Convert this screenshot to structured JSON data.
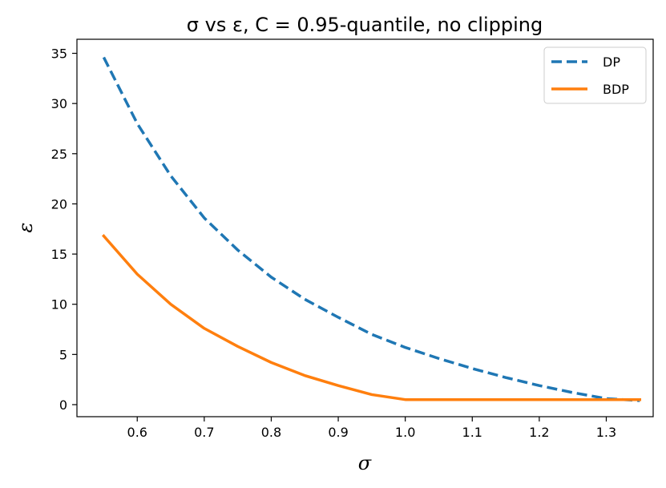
{
  "chart_data": {
    "type": "line",
    "title": "σ vs ε, C = 0.95-quantile, no clipping",
    "xlabel": "σ",
    "ylabel": "ε",
    "xlim": [
      0.51,
      1.37
    ],
    "ylim": [
      -1.2,
      36.4
    ],
    "xticks": [
      0.6,
      0.7,
      0.8,
      0.9,
      1.0,
      1.1,
      1.2,
      1.3
    ],
    "xtick_labels": [
      "0.6",
      "0.7",
      "0.8",
      "0.9",
      "1.0",
      "1.1",
      "1.2",
      "1.3"
    ],
    "yticks": [
      0,
      5,
      10,
      15,
      20,
      25,
      30,
      35
    ],
    "ytick_labels": [
      "0",
      "5",
      "10",
      "15",
      "20",
      "25",
      "30",
      "35"
    ],
    "grid": false,
    "legend_position": "top-right",
    "x": [
      0.55,
      0.6,
      0.65,
      0.7,
      0.75,
      0.8,
      0.85,
      0.9,
      0.95,
      1.0,
      1.05,
      1.1,
      1.15,
      1.2,
      1.25,
      1.3,
      1.35
    ],
    "series": [
      {
        "name": "DP",
        "color": "#1f77b4",
        "dash": "dashed",
        "values": [
          34.6,
          28.0,
          22.8,
          18.6,
          15.4,
          12.7,
          10.5,
          8.7,
          7.0,
          5.7,
          4.6,
          3.6,
          2.7,
          1.9,
          1.2,
          0.6,
          0.4
        ]
      },
      {
        "name": "BDP",
        "color": "#ff7f0e",
        "dash": "solid",
        "values": [
          16.8,
          13.0,
          10.0,
          7.6,
          5.8,
          4.2,
          2.9,
          1.9,
          1.0,
          0.5,
          0.5,
          0.5,
          0.5,
          0.5,
          0.5,
          0.5,
          0.5
        ]
      }
    ]
  }
}
